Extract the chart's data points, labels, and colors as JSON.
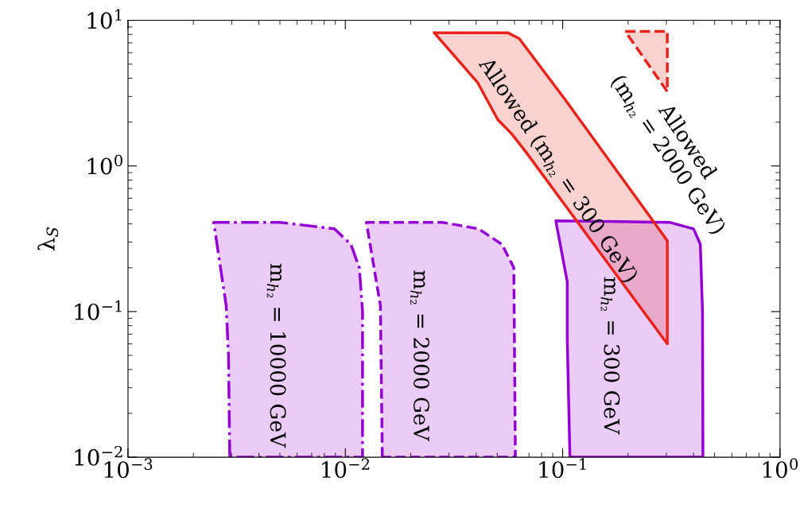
{
  "chart_data": {
    "type": "area",
    "ylabel": "λ$_{S}$",
    "log": "xy",
    "xlim": [
      0.001,
      1
    ],
    "ylim": [
      0.01,
      10
    ],
    "xticks": [
      {
        "value": 0.001,
        "label": "10$^{−3}$"
      },
      {
        "value": 0.01,
        "label": "10$^{−2}$"
      },
      {
        "value": 0.1,
        "label": "10$^{−1}$"
      },
      {
        "value": 1,
        "label": "10$^{0}$"
      }
    ],
    "yticks": [
      {
        "value": 0.01,
        "label": "10$^{−2}$"
      },
      {
        "value": 0.1,
        "label": "10$^{−1}$"
      },
      {
        "value": 1,
        "label": "10$^{0}$"
      },
      {
        "value": 10,
        "label": "10$^{1}$"
      }
    ],
    "grid": false,
    "series": [
      {
        "color": "#9400d3",
        "line_style": "dashdot",
        "x": [
          0.00294,
          0.0029,
          0.00283,
          0.00248,
          0.005,
          0.0089,
          0.0106,
          0.0116,
          0.012,
          0.012
        ],
        "values": [
          0.01,
          0.05,
          0.11,
          0.41,
          0.41,
          0.37,
          0.29,
          0.2,
          0.1,
          0.01
        ]
      },
      {
        "color": "#9400d3",
        "line_style": "dashed",
        "x": [
          0.0148,
          0.0146,
          0.0145,
          0.0125,
          0.028,
          0.041,
          0.0525,
          0.0596,
          0.0606
        ],
        "values": [
          0.01,
          0.05,
          0.11,
          0.41,
          0.41,
          0.37,
          0.29,
          0.2,
          0.01
        ]
      },
      {
        "color": "#9400d3",
        "line_style": "solid",
        "x": [
          0.108,
          0.105,
          0.105,
          0.093,
          0.31,
          0.4,
          0.43,
          0.44,
          0.442
        ],
        "values": [
          0.01,
          0.064,
          0.16,
          0.42,
          0.41,
          0.37,
          0.29,
          0.1,
          0.01
        ]
      },
      {
        "color": "#e8231b",
        "line_style": "solid",
        "x": [
          0.0257,
          0.0561,
          0.0631,
          0.1028,
          0.303,
          0.303,
          0.0674,
          0.0585,
          0.0503,
          0.0407
        ],
        "values": [
          8.2,
          8.2,
          7.5,
          2.85,
          0.307,
          0.06,
          1.26,
          1.65,
          2.08,
          3.72
        ]
      },
      {
        "color": "#e8231b",
        "line_style": "dashed",
        "x": [
          0.194,
          0.303,
          0.303
        ],
        "values": [
          8.4,
          8.4,
          3.24
        ]
      }
    ],
    "annotations": [
      "m$_{h₂}$ = 10000 GeV",
      "m$_{h₂}$ = 2000 GeV",
      "m$_{h₂}$ = 300 GeV",
      "Allowed (m$_{h₂}$ = 300 GeV)",
      "Allowed\n(m$_{h₂}$ = 2000 GeV)"
    ]
  }
}
